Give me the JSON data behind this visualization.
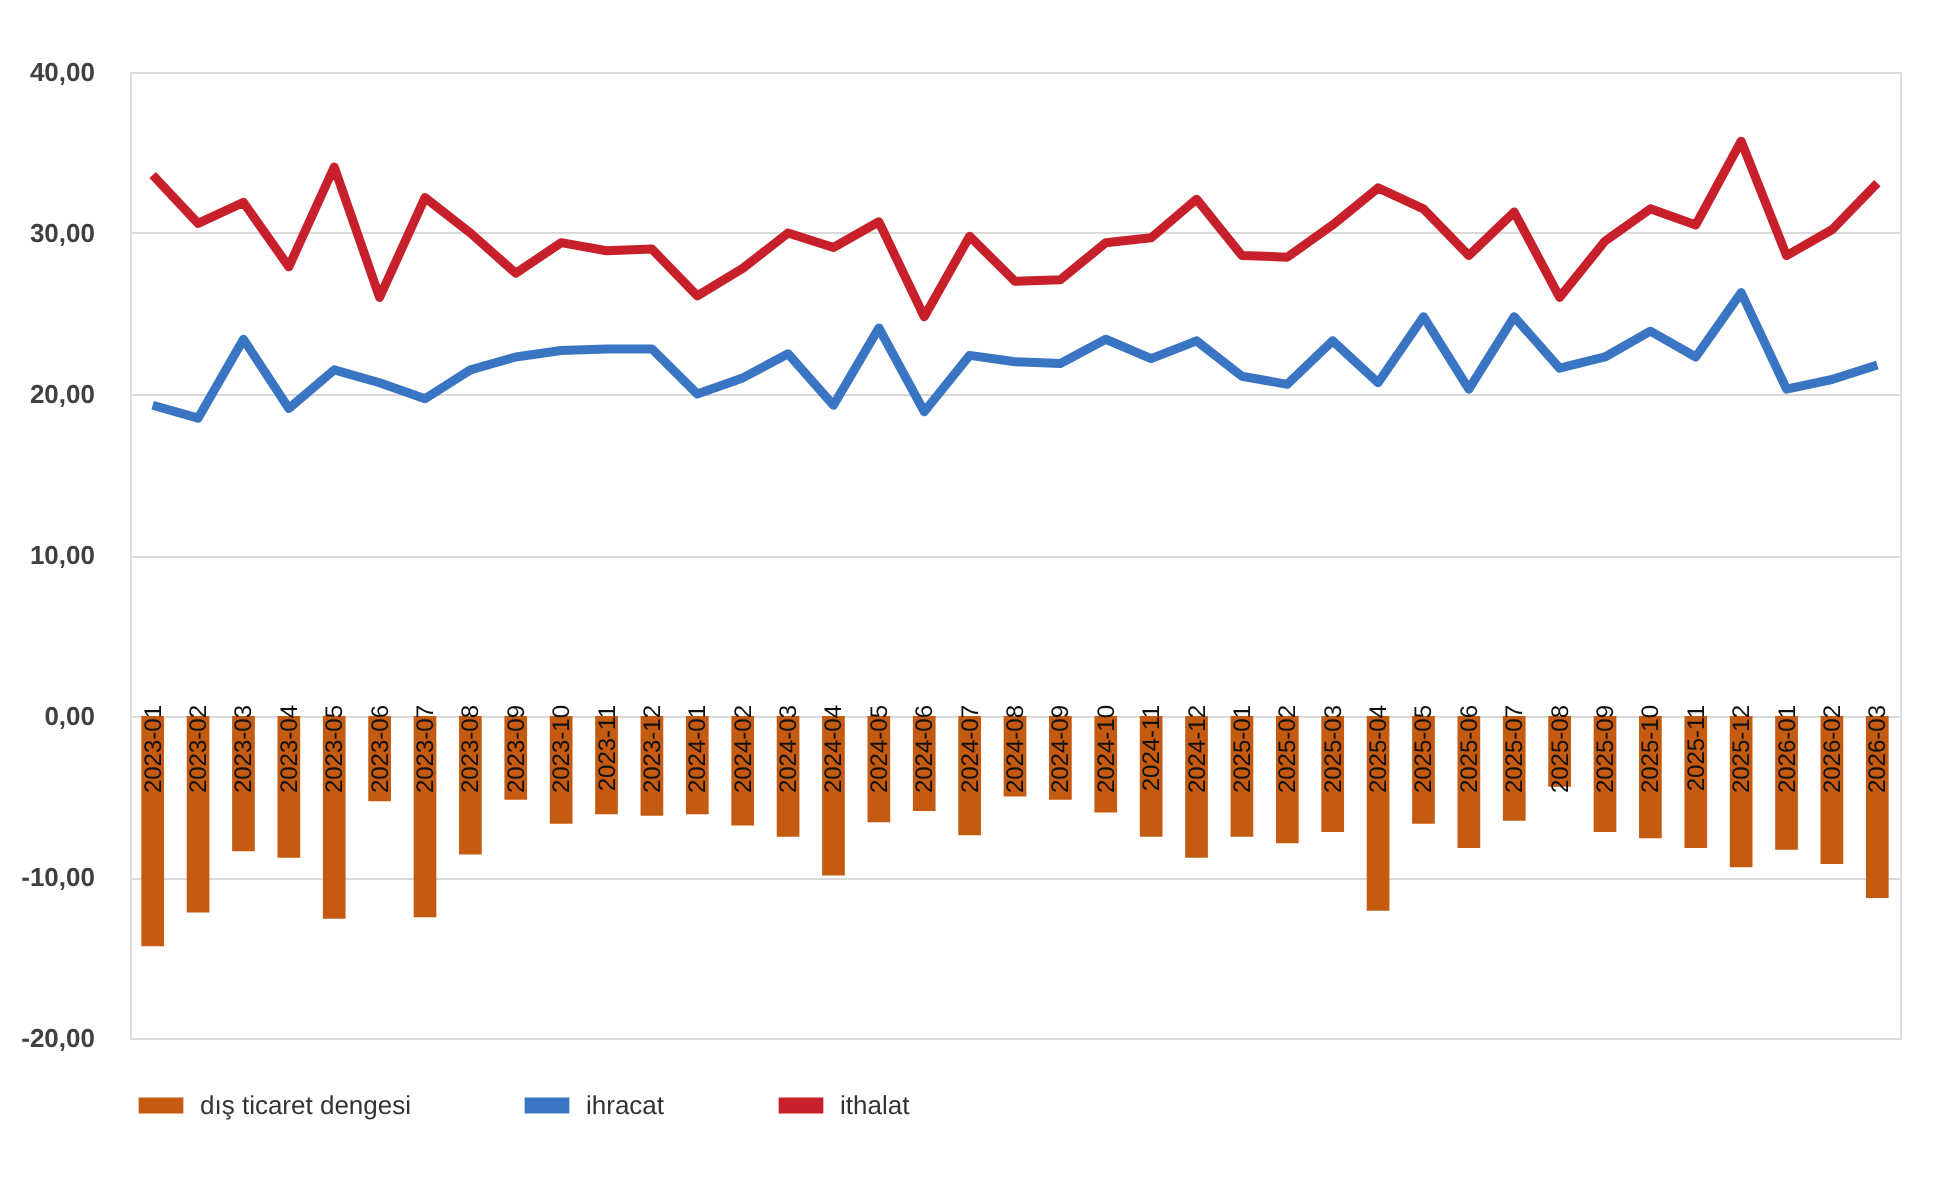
{
  "chart_data": {
    "type": "bar",
    "categories": [
      "2023-01",
      "2023-02",
      "2023-03",
      "2023-04",
      "2023-05",
      "2023-06",
      "2023-07",
      "2023-08",
      "2023-09",
      "2023-10",
      "2023-11",
      "2023-12",
      "2024-01",
      "2024-02",
      "2024-03",
      "2024-04",
      "2024-05",
      "2024-06",
      "2024-07",
      "2024-08",
      "2024-09",
      "2024-10",
      "2024-11",
      "2024-12",
      "2025-01",
      "2025-02",
      "2025-03",
      "2025-04",
      "2025-05",
      "2025-06",
      "2025-07",
      "2025-08",
      "2025-09",
      "2025-10",
      "2025-11",
      "2025-12",
      "2026-01",
      "2026-02",
      "2026-03"
    ],
    "series": [
      {
        "name": "dış ticaret dengesi",
        "type": "bar",
        "color": "#c55a11",
        "values": [
          -14.3,
          -12.2,
          -8.4,
          -8.8,
          -12.6,
          -5.3,
          -12.5,
          -8.6,
          -5.2,
          -6.7,
          -6.1,
          -6.2,
          -6.1,
          -6.8,
          -7.5,
          -9.9,
          -6.6,
          -5.9,
          -7.4,
          -5.0,
          -5.2,
          -6.0,
          -7.5,
          -8.8,
          -7.5,
          -7.9,
          -7.2,
          -12.1,
          -6.7,
          -8.2,
          -6.5,
          -4.4,
          -7.2,
          -7.6,
          -8.2,
          -9.4,
          -8.3,
          -9.2,
          -11.3
        ]
      },
      {
        "name": "ihracat",
        "type": "line",
        "color": "#3a75c4",
        "values": [
          19.3,
          18.5,
          23.4,
          19.1,
          21.5,
          20.7,
          19.7,
          21.5,
          22.3,
          22.7,
          22.8,
          22.8,
          20.0,
          21.0,
          22.5,
          19.3,
          24.1,
          18.9,
          22.4,
          22.0,
          21.9,
          23.4,
          22.2,
          23.3,
          21.1,
          20.6,
          23.3,
          20.7,
          24.8,
          20.3,
          24.8,
          21.6,
          22.3,
          23.9,
          22.3,
          26.3,
          20.3,
          20.9,
          21.8
        ]
      },
      {
        "name": "ithalat",
        "type": "line",
        "color": "#c8202a",
        "values": [
          33.6,
          30.6,
          31.9,
          27.9,
          34.1,
          26.0,
          32.2,
          30.0,
          27.5,
          29.4,
          28.9,
          29.0,
          26.1,
          27.8,
          30.0,
          29.1,
          30.7,
          24.8,
          29.8,
          27.0,
          27.1,
          29.4,
          29.7,
          32.1,
          28.6,
          28.5,
          30.5,
          32.8,
          31.5,
          28.6,
          31.3,
          26.0,
          29.5,
          31.5,
          30.5,
          35.7,
          28.6,
          30.2,
          33.1
        ]
      }
    ],
    "ylim": [
      -20,
      40
    ],
    "yticks": [
      {
        "value": -20,
        "label": "-20,00"
      },
      {
        "value": -10,
        "label": "-10,00"
      },
      {
        "value": 0,
        "label": "0,00"
      },
      {
        "value": 10,
        "label": "10,00"
      },
      {
        "value": 20,
        "label": "20,00"
      },
      {
        "value": 30,
        "label": "30,00"
      },
      {
        "value": 40,
        "label": "40,00"
      }
    ],
    "grid": "y",
    "legend": "bottom",
    "line_style": "solid",
    "marker": "none"
  }
}
